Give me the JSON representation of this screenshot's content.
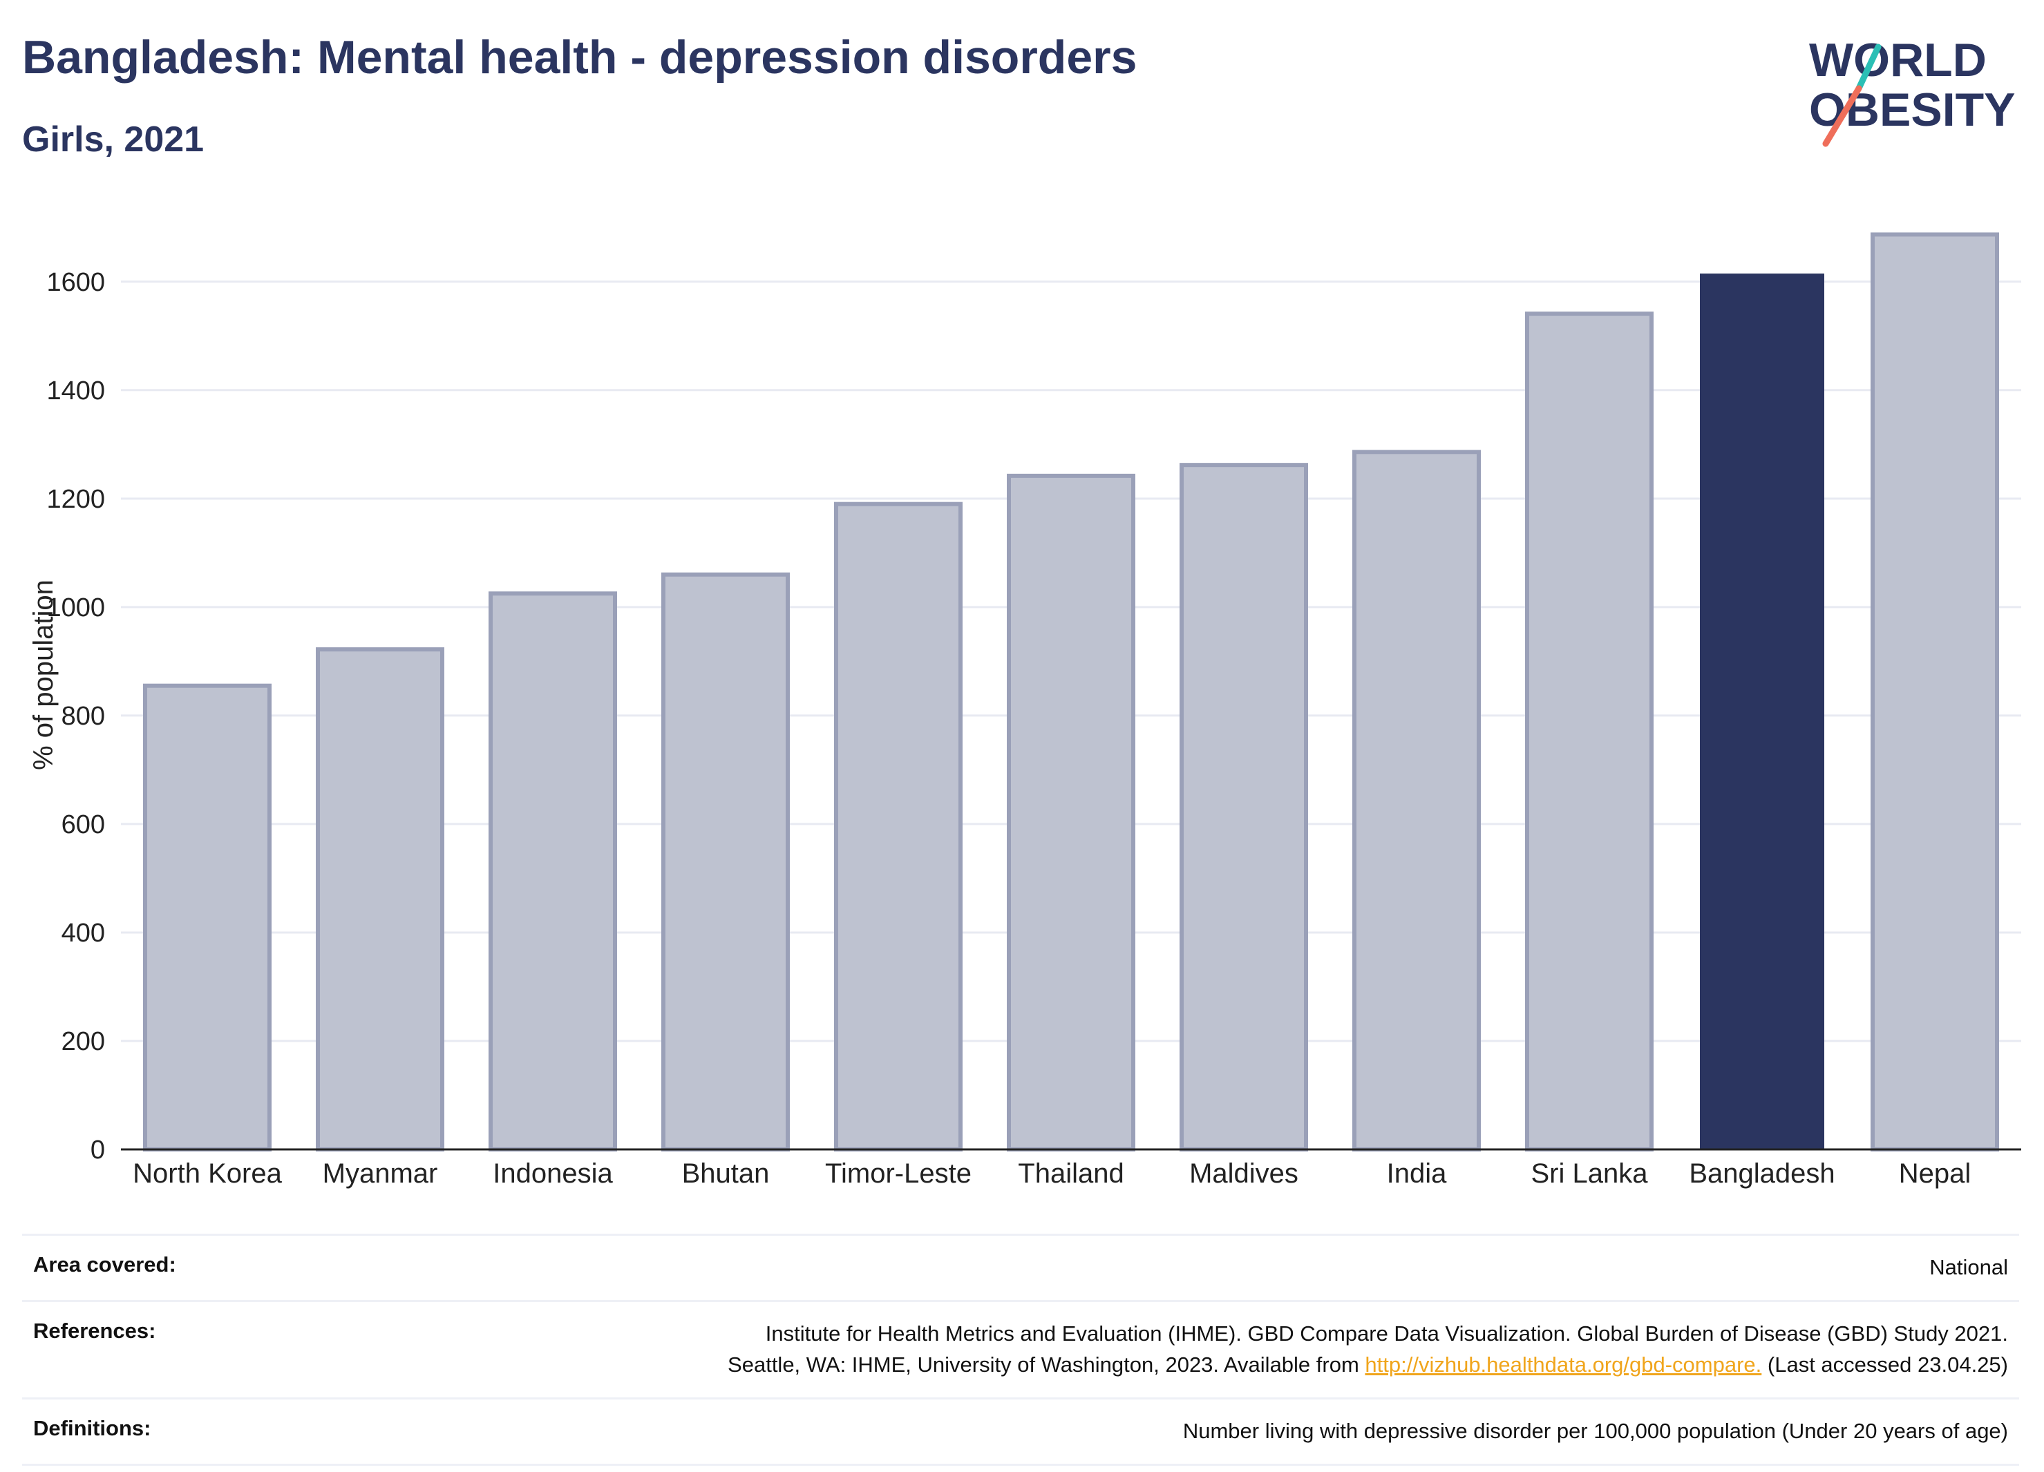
{
  "header": {
    "title": "Bangladesh: Mental health - depression disorders",
    "subtitle": "Girls, 2021"
  },
  "logo": {
    "line1": "WORLD",
    "line2": "OBESITY",
    "colors": {
      "text": "#2b3560",
      "slash_top": "#2bbfb5",
      "slash_bottom": "#ef6e5a"
    }
  },
  "colors": {
    "bar_default_fill": "#bec2d0",
    "bar_default_stroke": "#9aa0b8",
    "bar_highlight": "#2b3560",
    "gridline": "#e8eaf2",
    "axis": "#222222"
  },
  "chart_data": {
    "type": "bar",
    "title": "Bangladesh: Mental health - depression disorders",
    "subtitle": "Girls, 2021",
    "xlabel": "",
    "ylabel": "% of population",
    "categories": [
      "North Korea",
      "Myanmar",
      "Indonesia",
      "Bhutan",
      "Timor-Leste",
      "Thailand",
      "Maldives",
      "India",
      "Sri Lanka",
      "Bangladesh",
      "Nepal"
    ],
    "values": [
      855,
      922,
      1025,
      1060,
      1190,
      1242,
      1262,
      1286,
      1541,
      1615,
      1687
    ],
    "highlight": "Bangladesh",
    "ylim": [
      0,
      1750
    ],
    "yticks": [
      0,
      200,
      400,
      600,
      800,
      1000,
      1200,
      1400,
      1600
    ],
    "grid": true,
    "legend": "none"
  },
  "table": {
    "area_key": "Area covered:",
    "area_val": "National",
    "ref_key": "References:",
    "ref_line1": "Institute for Health Metrics and Evaluation (IHME). GBD Compare Data Visualization. Global Burden of Disease (GBD) Study 2021.",
    "ref_line2_pre": "Seattle, WA: IHME, University of Washington, 2023. Available from ",
    "ref_link": "http://vizhub.healthdata.org/gbd-compare.",
    "ref_line2_post": " (Last accessed 23.04.25)",
    "def_key": "Definitions:",
    "def_val": "Number living with depressive disorder per 100,000 population (Under 20 years of age)"
  }
}
